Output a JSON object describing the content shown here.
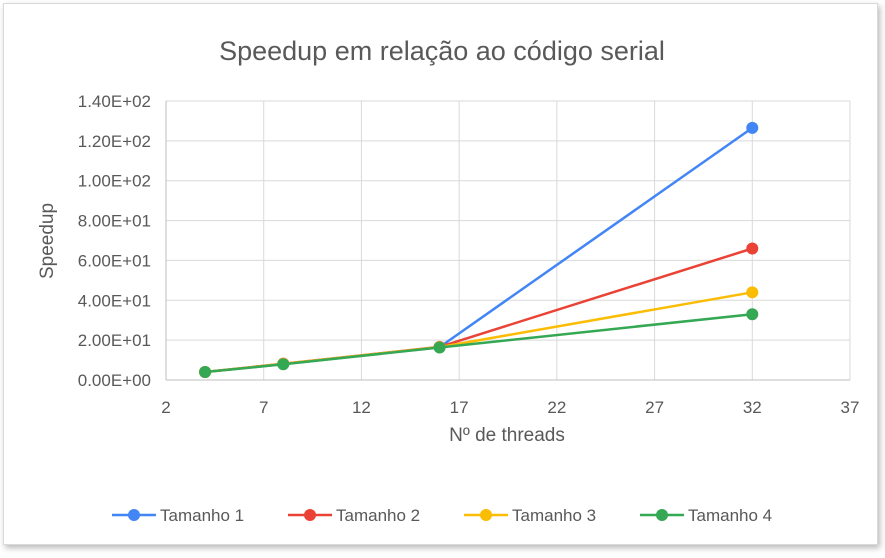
{
  "chart_data": {
    "type": "scatter",
    "title": "Speedup em relação ao código serial",
    "xlabel": "Nº de threads",
    "ylabel": "Speedup",
    "xlim": [
      2,
      37
    ],
    "ylim": [
      0,
      140
    ],
    "x_ticks": [
      2,
      7,
      12,
      17,
      22,
      27,
      32,
      37
    ],
    "x_tick_labels": [
      "2",
      "7",
      "12",
      "17",
      "22",
      "27",
      "32",
      "37"
    ],
    "y_ticks": [
      0,
      20,
      40,
      60,
      80,
      100,
      120,
      140
    ],
    "y_tick_labels": [
      "0.00E+00",
      "2.00E+01",
      "4.00E+01",
      "6.00E+01",
      "8.00E+01",
      "1.00E+02",
      "1.20E+02",
      "1.40E+02"
    ],
    "grid": true,
    "legend_position": "bottom",
    "x": [
      4,
      8,
      16,
      32
    ],
    "series": [
      {
        "name": "Tamanho 1",
        "color": "#4285f4",
        "values": [
          4,
          8,
          16.5,
          126.5
        ]
      },
      {
        "name": "Tamanho 2",
        "color": "#ea4335",
        "values": [
          4,
          8.2,
          16.6,
          66
        ]
      },
      {
        "name": "Tamanho 3",
        "color": "#fbbc04",
        "values": [
          4,
          8.1,
          16.5,
          44
        ]
      },
      {
        "name": "Tamanho 4",
        "color": "#34a853",
        "values": [
          4,
          7.9,
          16.3,
          33
        ]
      }
    ]
  }
}
